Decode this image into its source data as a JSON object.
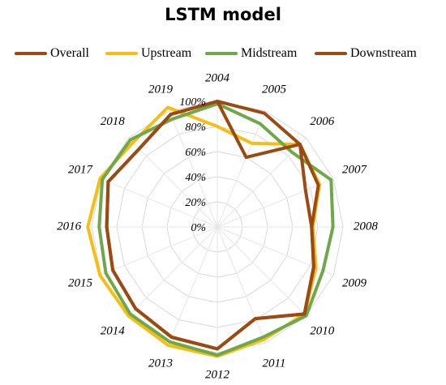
{
  "chart_data": {
    "type": "radar",
    "title": "LSTM model",
    "categories": [
      "2004",
      "2005",
      "2006",
      "2007",
      "2008",
      "2009",
      "2010",
      "2011",
      "2012",
      "2013",
      "2014",
      "2015",
      "2016",
      "2017",
      "2018",
      "2019"
    ],
    "rlim": [
      0,
      100
    ],
    "r_ticks": [
      "0%",
      "20%",
      "40%",
      "60%",
      "80%",
      "100%"
    ],
    "grid": true,
    "legend_position": "top",
    "series": [
      {
        "name": "Overall",
        "color": "#9B4A12",
        "values": [
          100,
          98,
          93,
          87,
          75,
          83,
          98,
          79,
          97,
          95,
          92,
          90,
          88,
          94,
          88,
          97
        ]
      },
      {
        "name": "Upstream",
        "color": "#F5BE17",
        "values": [
          80,
          72,
          93,
          88,
          76,
          85,
          98,
          97,
          103,
          102,
          100,
          101,
          103,
          101,
          95,
          103
        ]
      },
      {
        "name": "Midstream",
        "color": "#6FA84A",
        "values": [
          98,
          89,
          84,
          98,
          92,
          91,
          100,
          95,
          102,
          99,
          98,
          96,
          94,
          99,
          98,
          93
        ]
      },
      {
        "name": "Downstream",
        "color": "#9B4A12",
        "values": [
          100,
          60,
          93,
          76,
          75,
          83,
          98,
          79,
          97,
          95,
          92,
          90,
          88,
          94,
          88,
          97
        ]
      }
    ]
  }
}
